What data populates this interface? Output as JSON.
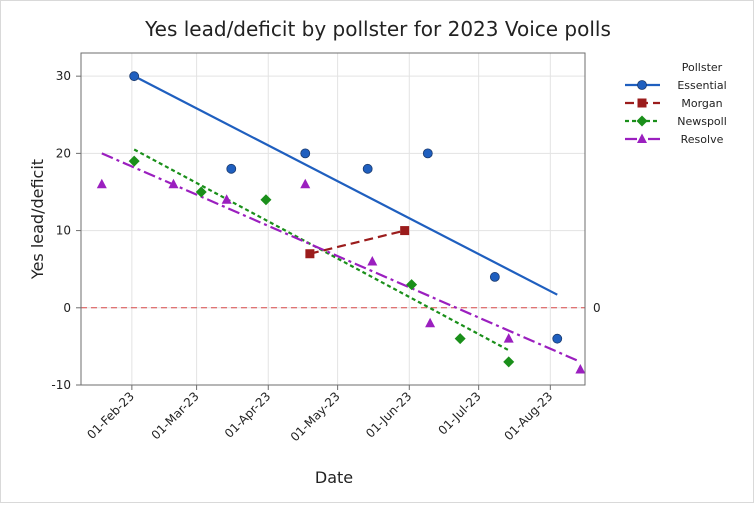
{
  "chart_data": {
    "type": "scatter",
    "title": "Yes lead/deficit by pollster for 2023 Voice polls",
    "xlabel": "Date",
    "ylabel": "Yes lead/deficit",
    "x_type": "date",
    "xlim": [
      "2023-01-10",
      "2023-08-16"
    ],
    "ylim": [
      -10,
      33
    ],
    "x_ticks": [
      {
        "value": "2023-02-01",
        "label": "01-Feb-23"
      },
      {
        "value": "2023-03-01",
        "label": "01-Mar-23"
      },
      {
        "value": "2023-04-01",
        "label": "01-Apr-23"
      },
      {
        "value": "2023-05-01",
        "label": "01-May-23"
      },
      {
        "value": "2023-06-01",
        "label": "01-Jun-23"
      },
      {
        "value": "2023-07-01",
        "label": "01-Jul-23"
      },
      {
        "value": "2023-08-01",
        "label": "01-Aug-23"
      }
    ],
    "y_ticks": [
      -10,
      0,
      10,
      20,
      30
    ],
    "grid": true,
    "legend": {
      "title": "Pollster",
      "placement": "right"
    },
    "reference_line": {
      "y": 0,
      "label": "0",
      "color": "#d94a4a"
    },
    "series": [
      {
        "name": "Essential",
        "color": "#1f5fbf",
        "marker": "circle",
        "line_style": "solid",
        "points": [
          {
            "x": "2023-02-02",
            "y": 30
          },
          {
            "x": "2023-03-16",
            "y": 18
          },
          {
            "x": "2023-04-17",
            "y": 20
          },
          {
            "x": "2023-05-14",
            "y": 18
          },
          {
            "x": "2023-06-09",
            "y": 20
          },
          {
            "x": "2023-07-08",
            "y": 4
          },
          {
            "x": "2023-08-04",
            "y": -4
          }
        ],
        "trend": [
          {
            "x": "2023-02-02",
            "y": 30
          },
          {
            "x": "2023-08-04",
            "y": 1.7
          }
        ]
      },
      {
        "name": "Morgan",
        "color": "#9b1c1c",
        "marker": "square",
        "line_style": "dashed",
        "points": [
          {
            "x": "2023-04-19",
            "y": 7
          },
          {
            "x": "2023-05-30",
            "y": 10
          }
        ],
        "trend": [
          {
            "x": "2023-04-19",
            "y": 7
          },
          {
            "x": "2023-05-30",
            "y": 10
          }
        ]
      },
      {
        "name": "Newspoll",
        "color": "#1a8f1a",
        "marker": "diamond",
        "line_style": "dotted",
        "points": [
          {
            "x": "2023-02-02",
            "y": 19
          },
          {
            "x": "2023-03-03",
            "y": 15
          },
          {
            "x": "2023-03-31",
            "y": 14
          },
          {
            "x": "2023-06-02",
            "y": 3
          },
          {
            "x": "2023-06-23",
            "y": -4
          },
          {
            "x": "2023-07-14",
            "y": -7
          }
        ],
        "trend": [
          {
            "x": "2023-02-02",
            "y": 20.5
          },
          {
            "x": "2023-07-14",
            "y": -5.5
          }
        ]
      },
      {
        "name": "Resolve",
        "color": "#9b1fbf",
        "marker": "triangle",
        "line_style": "dashdot",
        "points": [
          {
            "x": "2023-01-19",
            "y": 16
          },
          {
            "x": "2023-02-19",
            "y": 16
          },
          {
            "x": "2023-03-14",
            "y": 14
          },
          {
            "x": "2023-04-17",
            "y": 16
          },
          {
            "x": "2023-05-16",
            "y": 6
          },
          {
            "x": "2023-06-10",
            "y": -2
          },
          {
            "x": "2023-07-14",
            "y": -4
          },
          {
            "x": "2023-08-14",
            "y": -8
          }
        ],
        "trend": [
          {
            "x": "2023-01-19",
            "y": 20
          },
          {
            "x": "2023-08-14",
            "y": -7
          }
        ]
      }
    ]
  }
}
